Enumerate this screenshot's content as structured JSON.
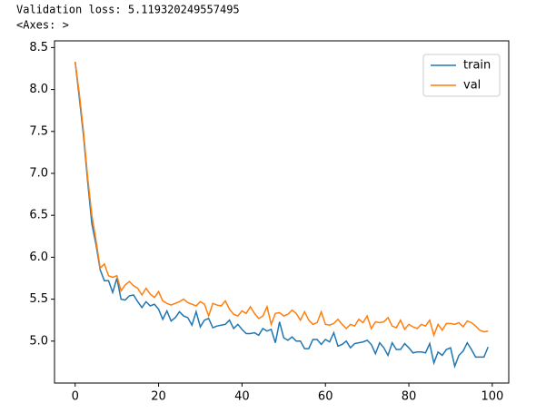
{
  "output": {
    "lines": [
      "Validation loss:  5.119320249557495",
      "<Axes: >"
    ]
  },
  "chart_data": {
    "type": "line",
    "x": [
      0,
      1,
      2,
      3,
      4,
      5,
      6,
      7,
      8,
      9,
      10,
      11,
      12,
      13,
      14,
      15,
      16,
      17,
      18,
      19,
      20,
      21,
      22,
      23,
      24,
      25,
      26,
      27,
      28,
      29,
      30,
      31,
      32,
      33,
      34,
      35,
      36,
      37,
      38,
      39,
      40,
      41,
      42,
      43,
      44,
      45,
      46,
      47,
      48,
      49,
      50,
      51,
      52,
      53,
      54,
      55,
      56,
      57,
      58,
      59,
      60,
      61,
      62,
      63,
      64,
      65,
      66,
      67,
      68,
      69,
      70,
      71,
      72,
      73,
      74,
      75,
      76,
      77,
      78,
      79,
      80,
      81,
      82,
      83,
      84,
      85,
      86,
      87,
      88,
      89,
      90,
      91,
      92,
      93,
      94,
      95,
      96,
      97,
      98,
      99
    ],
    "series": [
      {
        "name": "train",
        "color": "#1f77b4",
        "values": [
          8.33,
          7.9,
          7.45,
          6.9,
          6.4,
          6.15,
          5.85,
          5.72,
          5.72,
          5.58,
          5.75,
          5.5,
          5.49,
          5.54,
          5.55,
          5.47,
          5.4,
          5.47,
          5.42,
          5.44,
          5.38,
          5.26,
          5.36,
          5.24,
          5.28,
          5.35,
          5.3,
          5.28,
          5.19,
          5.35,
          5.17,
          5.25,
          5.27,
          5.16,
          5.18,
          5.19,
          5.2,
          5.25,
          5.15,
          5.2,
          5.14,
          5.09,
          5.09,
          5.1,
          5.07,
          5.15,
          5.12,
          5.14,
          4.98,
          5.23,
          5.04,
          5.01,
          5.05,
          5.0,
          5.0,
          4.91,
          4.91,
          5.02,
          5.02,
          4.96,
          5.02,
          4.99,
          5.1,
          4.94,
          4.96,
          5.0,
          4.92,
          4.97,
          4.98,
          4.99,
          5.01,
          4.96,
          4.85,
          4.98,
          4.92,
          4.83,
          4.98,
          4.9,
          4.9,
          4.97,
          4.92,
          4.86,
          4.87,
          4.87,
          4.86,
          4.97,
          4.74,
          4.87,
          4.83,
          4.9,
          4.92,
          4.7,
          4.83,
          4.88,
          4.98,
          4.9,
          4.81,
          4.81,
          4.81,
          4.93
        ]
      },
      {
        "name": "val",
        "color": "#ff7f0e",
        "values": [
          8.33,
          7.95,
          7.5,
          6.95,
          6.5,
          6.2,
          5.87,
          5.92,
          5.78,
          5.76,
          5.78,
          5.6,
          5.67,
          5.71,
          5.66,
          5.63,
          5.55,
          5.63,
          5.56,
          5.52,
          5.59,
          5.48,
          5.45,
          5.43,
          5.45,
          5.47,
          5.5,
          5.46,
          5.44,
          5.42,
          5.47,
          5.44,
          5.3,
          5.45,
          5.43,
          5.42,
          5.48,
          5.38,
          5.32,
          5.3,
          5.36,
          5.33,
          5.41,
          5.33,
          5.27,
          5.3,
          5.41,
          5.2,
          5.33,
          5.34,
          5.3,
          5.32,
          5.37,
          5.33,
          5.25,
          5.35,
          5.25,
          5.2,
          5.22,
          5.35,
          5.2,
          5.19,
          5.21,
          5.26,
          5.2,
          5.15,
          5.2,
          5.18,
          5.26,
          5.22,
          5.3,
          5.15,
          5.23,
          5.22,
          5.23,
          5.28,
          5.18,
          5.16,
          5.25,
          5.14,
          5.2,
          5.17,
          5.15,
          5.2,
          5.18,
          5.25,
          5.07,
          5.2,
          5.13,
          5.21,
          5.21,
          5.2,
          5.22,
          5.17,
          5.24,
          5.22,
          5.18,
          5.13,
          5.11,
          5.12
        ]
      }
    ],
    "xlim": [
      -4.95,
      103.95
    ],
    "xticks": [
      0,
      20,
      40,
      60,
      80,
      100
    ],
    "ylim": [
      4.5,
      8.58
    ],
    "yticks": [
      {
        "value": 5.0,
        "label": "5.0"
      },
      5.5,
      {
        "value": 6.0,
        "label": "6.0"
      },
      6.5,
      {
        "value": 7.0,
        "label": "7.0"
      },
      7.5,
      {
        "value": 8.0,
        "label": "8.0"
      },
      8.5
    ],
    "legend": "upper right"
  }
}
